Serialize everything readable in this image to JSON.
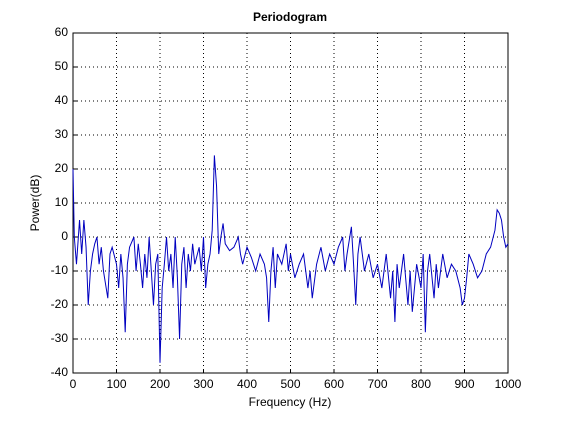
{
  "chart_data": {
    "type": "line",
    "title": "Periodogram",
    "xlabel": "Frequency (Hz)",
    "ylabel": "Power(dB)",
    "color": "#0000c0",
    "grid": true,
    "xlim": [
      0,
      1000
    ],
    "ylim": [
      -40,
      60
    ],
    "xticks": [
      0,
      100,
      200,
      300,
      400,
      500,
      600,
      700,
      800,
      900,
      1000
    ],
    "yticks": [
      -40,
      -30,
      -20,
      -10,
      0,
      10,
      20,
      30,
      40,
      50,
      60
    ],
    "x": [
      0,
      3,
      8,
      15,
      20,
      25,
      30,
      35,
      40,
      45,
      50,
      55,
      60,
      65,
      70,
      80,
      85,
      90,
      100,
      105,
      110,
      115,
      120,
      125,
      130,
      140,
      145,
      150,
      155,
      160,
      165,
      170,
      175,
      180,
      185,
      190,
      195,
      200,
      205,
      210,
      215,
      220,
      225,
      230,
      235,
      240,
      245,
      250,
      255,
      260,
      265,
      270,
      275,
      280,
      290,
      295,
      300,
      305,
      310,
      315,
      320,
      325,
      330,
      335,
      340,
      345,
      350,
      360,
      370,
      380,
      385,
      390,
      400,
      410,
      420,
      430,
      440,
      445,
      450,
      455,
      460,
      465,
      470,
      480,
      490,
      495,
      500,
      510,
      520,
      530,
      540,
      545,
      550,
      560,
      570,
      580,
      590,
      600,
      610,
      620,
      625,
      630,
      640,
      645,
      650,
      655,
      660,
      670,
      680,
      690,
      700,
      710,
      720,
      730,
      735,
      740,
      745,
      750,
      760,
      770,
      775,
      780,
      790,
      800,
      805,
      810,
      815,
      820,
      830,
      835,
      840,
      850,
      860,
      870,
      880,
      890,
      895,
      900,
      905,
      910,
      920,
      930,
      940,
      950,
      960,
      970,
      975,
      980,
      985,
      990,
      995,
      1000
    ],
    "values": [
      20,
      0,
      -8,
      5,
      -5,
      5,
      -3,
      -20,
      -10,
      -5,
      -2,
      0,
      -8,
      -3,
      -10,
      -18,
      -5,
      -3,
      -8,
      -15,
      -5,
      -12,
      -28,
      -8,
      -3,
      0,
      -10,
      -2,
      -8,
      -15,
      -5,
      -12,
      0,
      -10,
      -20,
      -8,
      -5,
      -37,
      -15,
      -8,
      0,
      -10,
      -5,
      -15,
      0,
      -12,
      -30,
      -8,
      -3,
      -15,
      -5,
      -10,
      -2,
      -8,
      -3,
      -10,
      0,
      -15,
      -8,
      -5,
      2,
      24,
      15,
      -5,
      0,
      4,
      -2,
      -4,
      -3,
      0,
      -5,
      -8,
      -3,
      -6,
      -10,
      -5,
      -8,
      -12,
      -25,
      -10,
      -3,
      -15,
      -5,
      -8,
      -2,
      -10,
      -5,
      -12,
      -8,
      -5,
      -15,
      -10,
      -18,
      -8,
      -3,
      -10,
      -5,
      -8,
      -3,
      0,
      -10,
      -5,
      3,
      -8,
      -20,
      -5,
      0,
      -10,
      -5,
      -12,
      -8,
      -15,
      -5,
      -18,
      -10,
      -25,
      -8,
      -15,
      -5,
      -20,
      -10,
      -22,
      -8,
      -15,
      -5,
      -28,
      -10,
      -5,
      -18,
      -8,
      -15,
      -5,
      -12,
      -8,
      -10,
      -15,
      -20,
      -18,
      -12,
      -5,
      -8,
      -12,
      -10,
      -5,
      -3,
      2,
      8,
      7,
      5,
      0,
      -3,
      -2
    ]
  }
}
